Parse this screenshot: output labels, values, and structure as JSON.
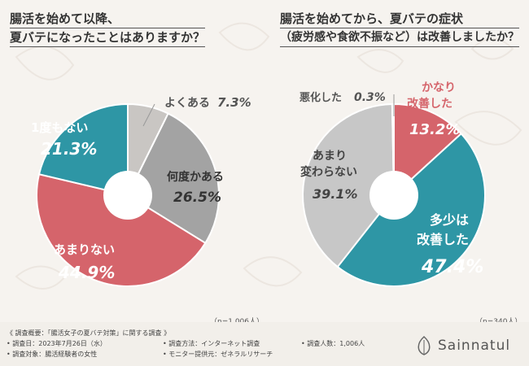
{
  "left": {
    "title_line1": "腸活を始めて以降、",
    "title_line2": "夏バテになったことはありますか？",
    "sample": "（n=1,006人）",
    "slices": [
      {
        "label": "よくある",
        "value": 7.3,
        "color": "#c9c6c3"
      },
      {
        "label": "何度かある",
        "value": 26.5,
        "color": "#a3a3a3"
      },
      {
        "label": "あまりない",
        "value": 44.9,
        "color": "#d5646b"
      },
      {
        "label": "1度もない",
        "value": 21.3,
        "color": "#2e96a5"
      }
    ],
    "value_labels": [
      "7.3%",
      "26.5%",
      "44.9%",
      "21.3%"
    ],
    "label_texts": {
      "yokuaru": "よくある",
      "nandoka": "何度かある",
      "amarinai": "あまりない",
      "ichido": "1度もない"
    }
  },
  "right": {
    "title_line1": "腸活を始めてから、夏バテの症状",
    "title_line2": "（疲労感や食欲不振など）は改善しましたか？",
    "sample": "（n=340人）",
    "slices": [
      {
        "label": "かなり改善した",
        "value": 13.2,
        "color": "#d5646b"
      },
      {
        "label": "多少は改善した",
        "value": 47.4,
        "color": "#2e96a5"
      },
      {
        "label": "あまり変わらない",
        "value": 39.1,
        "color": "#c7c7c7"
      },
      {
        "label": "悪化した",
        "value": 0.3,
        "color": "#888888"
      }
    ],
    "value_labels": [
      "13.2%",
      "47.4%",
      "39.1%",
      "0.3%"
    ],
    "label_texts": {
      "kanari1": "かなり",
      "kanari2": "改善した",
      "tasho1": "多少は",
      "tasho2": "改善した",
      "amari1": "あまり",
      "amari2": "変わらない",
      "akka": "悪化した"
    }
  },
  "chart_data": [
    {
      "type": "pie",
      "title": "腸活を始めて以降、夏バテになったことはありますか？",
      "categories": [
        "よくある",
        "何度かある",
        "あまりない",
        "1度もない"
      ],
      "values": [
        7.3,
        26.5,
        44.9,
        21.3
      ],
      "unit": "%",
      "n": "n=1,006人"
    },
    {
      "type": "pie",
      "title": "腸活を始めてから、夏バテの症状（疲労感や食欲不振など）は改善しましたか？",
      "categories": [
        "かなり改善した",
        "多少は改善した",
        "あまり変わらない",
        "悪化した"
      ],
      "values": [
        13.2,
        47.4,
        39.1,
        0.3
      ],
      "unit": "%",
      "n": "n=340人"
    }
  ],
  "footer": {
    "overview": "《 調査概要：「腸活女子の夏バテ対策」に関する調査 》",
    "date": "• 調査日：2023年7月26日（水）",
    "method": "• 調査方法：インターネット調査",
    "count": "• 調査人数：1,006人",
    "target": "• 調査対象：腸活経験者の女性",
    "provider": "• モニター提供元：ゼネラルリサーチ",
    "brand": "Sainnatul"
  }
}
